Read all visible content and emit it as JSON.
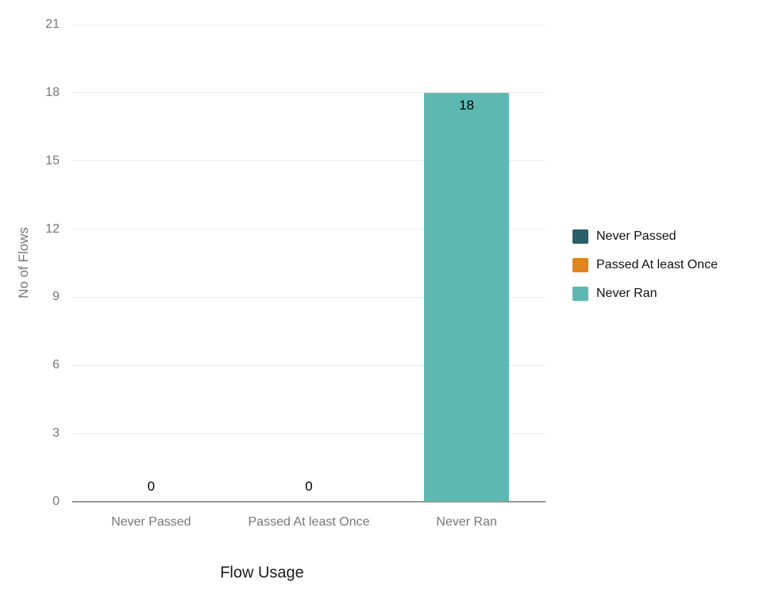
{
  "chart_data": {
    "type": "bar",
    "title": "",
    "xlabel": "Flow Usage",
    "ylabel": "No of Flows",
    "categories": [
      "Never Passed",
      "Passed At least Once",
      "Never Ran"
    ],
    "values": [
      0,
      0,
      18
    ],
    "value_labels": [
      "0",
      "0",
      "18"
    ],
    "bar_colors": [
      "#295F68",
      "#E0861A",
      "#5EB8B2"
    ],
    "ylim": [
      0,
      21
    ],
    "yticks": [
      0,
      3,
      6,
      9,
      12,
      15,
      18,
      21
    ],
    "grid": "horizontal-only",
    "background": "#ffffff",
    "axis_text_color": "#777777",
    "gridline_color": "#ececec",
    "zero_line_color": "#979797",
    "legend": {
      "position": "right",
      "items": [
        {
          "label": "Never Passed",
          "color": "#295F68"
        },
        {
          "label": "Passed At least Once",
          "color": "#E0861A"
        },
        {
          "label": "Never Ran",
          "color": "#5EB8B2"
        }
      ]
    }
  }
}
